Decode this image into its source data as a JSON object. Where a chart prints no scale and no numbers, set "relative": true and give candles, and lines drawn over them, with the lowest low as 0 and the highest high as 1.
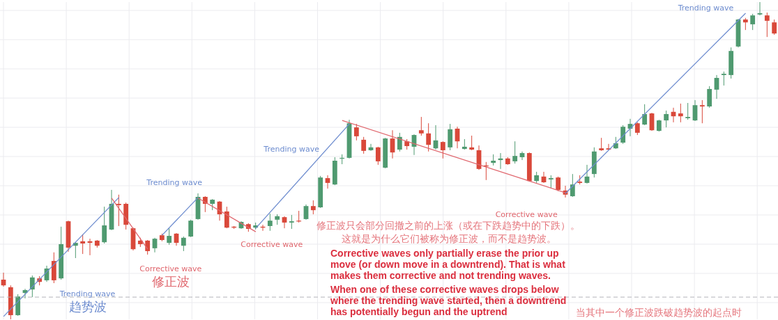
{
  "chart_data": {
    "type": "candlestick",
    "relative": true,
    "grid": true,
    "tick_labels": false,
    "categories": [
      null,
      null,
      null,
      null,
      null,
      null,
      null,
      null,
      null,
      null,
      null,
      null,
      null,
      null,
      null,
      null,
      null,
      null,
      null,
      null,
      null,
      null,
      null,
      null,
      null,
      null,
      null,
      null,
      null,
      null,
      null,
      null,
      null,
      null,
      null,
      null,
      null,
      null,
      null,
      null,
      null,
      null,
      null,
      null,
      null,
      null,
      null,
      null,
      null,
      null,
      null,
      null,
      null,
      null,
      null,
      null,
      null,
      null,
      null,
      null,
      null,
      null,
      null,
      null,
      null,
      null,
      null,
      null,
      null,
      null,
      null,
      null,
      null,
      null,
      null,
      null,
      null,
      null,
      null,
      null,
      null,
      null,
      null,
      null,
      null,
      null,
      null,
      null,
      null,
      null,
      null,
      null,
      null,
      null,
      null,
      null,
      null,
      null,
      null,
      null,
      null,
      null,
      null,
      null,
      null,
      null,
      null,
      null
    ],
    "ohlc": [
      [
        0.125,
        0.147,
        0.103,
        0.107
      ],
      [
        0.101,
        0.107,
        0,
        0.013
      ],
      [
        0.013,
        0.079,
        0.011,
        0.072
      ],
      [
        0.083,
        0.096,
        0.066,
        0.092
      ],
      [
        0.094,
        0.138,
        0.07,
        0.132
      ],
      [
        0.129,
        0.136,
        0.107,
        0.118
      ],
      [
        0.123,
        0.169,
        0.118,
        0.16
      ],
      [
        0.184,
        0.211,
        0.114,
        0.123
      ],
      [
        0.129,
        0.292,
        0.125,
        0.237
      ],
      [
        0.309,
        0.311,
        0.213,
        0.226
      ],
      [
        0.232,
        0.243,
        0.193,
        0.241
      ],
      [
        0.246,
        0.268,
        0.206,
        0.239
      ],
      [
        0.246,
        0.254,
        0.202,
        0.241
      ],
      [
        0.248,
        0.25,
        0.226,
        0.232
      ],
      [
        0.243,
        0.355,
        0.239,
        0.296
      ],
      [
        0.283,
        0.408,
        0.281,
        0.364
      ],
      [
        0.364,
        0.393,
        0.294,
        0.36
      ],
      [
        0.364,
        0.368,
        0.283,
        0.298
      ],
      [
        0.287,
        0.289,
        0.217,
        0.221
      ],
      [
        0.248,
        0.257,
        0.228,
        0.237
      ],
      [
        0.248,
        0.25,
        0.204,
        0.215
      ],
      [
        0.224,
        0.257,
        0.211,
        0.254
      ],
      [
        0.265,
        0.27,
        0.246,
        0.25
      ],
      [
        0.241,
        0.287,
        0.235,
        0.263
      ],
      [
        0.27,
        0.272,
        0.232,
        0.241
      ],
      [
        0.232,
        0.261,
        0.215,
        0.257
      ],
      [
        0.261,
        0.314,
        0.259,
        0.311
      ],
      [
        0.316,
        0.397,
        0.314,
        0.386
      ],
      [
        0.386,
        0.388,
        0.338,
        0.364
      ],
      [
        0.364,
        0.379,
        0.344,
        0.377
      ],
      [
        0.371,
        0.373,
        0.311,
        0.331
      ],
      [
        0.34,
        0.355,
        0.287,
        0.289
      ],
      [
        0.292,
        0.294,
        0.285,
        0.289
      ],
      [
        0.287,
        0.309,
        0.285,
        0.307
      ],
      [
        0.3,
        0.303,
        0.276,
        0.285
      ],
      [
        0.289,
        0.305,
        0.283,
        0.296
      ],
      [
        0.292,
        0.298,
        0.279,
        0.289
      ],
      [
        0.294,
        0.333,
        0.279,
        0.311
      ],
      [
        0.314,
        0.331,
        0.298,
        0.325
      ],
      [
        0.322,
        0.325,
        0.287,
        0.305
      ],
      [
        0.305,
        0.329,
        0.285,
        0.309
      ],
      [
        0.311,
        0.342,
        0.305,
        0.309
      ],
      [
        0.316,
        0.362,
        0.314,
        0.357
      ],
      [
        0.357,
        0.375,
        0.331,
        0.344
      ],
      [
        0.353,
        0.452,
        0.351,
        0.447
      ],
      [
        0.445,
        0.454,
        0.412,
        0.43
      ],
      [
        0.425,
        0.511,
        0.423,
        0.5
      ],
      [
        0.507,
        0.52,
        0.489,
        0.509
      ],
      [
        0.509,
        0.629,
        0.507,
        0.618
      ],
      [
        0.605,
        0.616,
        0.564,
        0.577
      ],
      [
        0.566,
        0.575,
        0.522,
        0.531
      ],
      [
        0.533,
        0.553,
        0.531,
        0.542
      ],
      [
        0.542,
        0.544,
        0.487,
        0.498
      ],
      [
        0.478,
        0.572,
        0.476,
        0.57
      ],
      [
        0.57,
        0.596,
        0.507,
        0.526
      ],
      [
        0.535,
        0.588,
        0.529,
        0.575
      ],
      [
        0.561,
        0.568,
        0.535,
        0.546
      ],
      [
        0.544,
        0.583,
        0.518,
        0.581
      ],
      [
        0.596,
        0.638,
        0.579,
        0.586
      ],
      [
        0.586,
        0.618,
        0.529,
        0.55
      ],
      [
        0.539,
        0.612,
        0.535,
        0.564
      ],
      [
        0.559,
        0.561,
        0.507,
        0.533
      ],
      [
        0.542,
        0.616,
        0.533,
        0.599
      ],
      [
        0.601,
        0.607,
        0.539,
        0.561
      ],
      [
        0.537,
        0.568,
        0.535,
        0.544
      ],
      [
        0.542,
        0.579,
        0.533,
        0.535
      ],
      [
        0.533,
        0.548,
        0.471,
        0.474
      ],
      [
        0.485,
        0.496,
        0.439,
        0.482
      ],
      [
        0.493,
        0.52,
        0.485,
        0.5
      ],
      [
        0.502,
        0.524,
        0.474,
        0.507
      ],
      [
        0.507,
        0.511,
        0.487,
        0.489
      ],
      [
        0.498,
        0.561,
        0.491,
        0.515
      ],
      [
        0.511,
        0.529,
        0.502,
        0.524
      ],
      [
        0.524,
        0.526,
        0.434,
        0.436
      ],
      [
        0.436,
        0.465,
        0.43,
        0.454
      ],
      [
        0.45,
        0.465,
        0.43,
        0.432
      ],
      [
        0.441,
        0.454,
        0.414,
        0.445
      ],
      [
        0.447,
        0.45,
        0.404,
        0.408
      ],
      [
        0.406,
        0.421,
        0.384,
        0.393
      ],
      [
        0.388,
        0.458,
        0.386,
        0.425
      ],
      [
        0.434,
        0.454,
        0.425,
        0.43
      ],
      [
        0.43,
        0.487,
        0.428,
        0.45
      ],
      [
        0.458,
        0.542,
        0.447,
        0.529
      ],
      [
        0.539,
        0.572,
        0.531,
        0.533
      ],
      [
        0.539,
        0.553,
        0.533,
        0.535
      ],
      [
        0.539,
        0.575,
        0.537,
        0.555
      ],
      [
        0.557,
        0.612,
        0.553,
        0.607
      ],
      [
        0.601,
        0.632,
        0.577,
        0.616
      ],
      [
        0.618,
        0.621,
        0.581,
        0.588
      ],
      [
        0.614,
        0.678,
        0.612,
        0.647
      ],
      [
        0.649,
        0.651,
        0.594,
        0.596
      ],
      [
        0.594,
        0.629,
        0.592,
        0.627
      ],
      [
        0.627,
        0.658,
        0.605,
        0.647
      ],
      [
        0.654,
        0.667,
        0.621,
        0.64
      ],
      [
        0.649,
        0.68,
        0.621,
        0.64
      ],
      [
        0.634,
        0.682,
        0.629,
        0.638
      ],
      [
        0.627,
        0.691,
        0.625,
        0.675
      ],
      [
        0.675,
        0.691,
        0.618,
        0.671
      ],
      [
        0.671,
        0.735,
        0.667,
        0.726
      ],
      [
        0.724,
        0.77,
        0.695,
        0.761
      ],
      [
        0.77,
        0.781,
        0.737,
        0.774
      ],
      [
        0.77,
        0.857,
        0.759,
        0.846
      ],
      [
        0.86,
        0.947,
        0.857,
        0.945
      ],
      [
        0.945,
        0.95,
        0.912,
        0.936
      ],
      [
        0.93,
        0.963,
        0.912,
        0.958
      ],
      [
        0.961,
        1,
        0.958,
        0.965
      ],
      [
        0.958,
        0.967,
        0.89,
        0.941
      ],
      [
        0.936,
        0.945,
        0.897,
        0.901
      ]
    ],
    "colors": [
      "#d9483a",
      "#d9483a",
      "#4f9a70",
      "#4f9a70",
      "#4f9a70",
      "#d9483a",
      "#4f9a70",
      "#d9483a",
      "#4f9a70",
      "#d9483a",
      "#4f9a70",
      "#d9483a",
      "#d9483a",
      "#d9483a",
      "#4f9a70",
      "#4f9a70",
      "#d9483a",
      "#d9483a",
      "#d9483a",
      "#d9483a",
      "#d9483a",
      "#4f9a70",
      "#d9483a",
      "#4f9a70",
      "#d9483a",
      "#4f9a70",
      "#4f9a70",
      "#4f9a70",
      "#d9483a",
      "#4f9a70",
      "#d9483a",
      "#d9483a",
      "#d9483a",
      "#4f9a70",
      "#d9483a",
      "#4f9a70",
      "#d9483a",
      "#4f9a70",
      "#4f9a70",
      "#d9483a",
      "#4f9a70",
      "#d9483a",
      "#4f9a70",
      "#d9483a",
      "#4f9a70",
      "#d9483a",
      "#4f9a70",
      "#4f9a70",
      "#4f9a70",
      "#d9483a",
      "#d9483a",
      "#4f9a70",
      "#d9483a",
      "#4f9a70",
      "#d9483a",
      "#4f9a70",
      "#d9483a",
      "#4f9a70",
      "#d9483a",
      "#d9483a",
      "#4f9a70",
      "#d9483a",
      "#4f9a70",
      "#d9483a",
      "#4f9a70",
      "#d9483a",
      "#d9483a",
      "#d9483a",
      "#4f9a70",
      "#4f9a70",
      "#d9483a",
      "#4f9a70",
      "#4f9a70",
      "#d9483a",
      "#4f9a70",
      "#d9483a",
      "#4f9a70",
      "#d9483a",
      "#d9483a",
      "#4f9a70",
      "#d9483a",
      "#4f9a70",
      "#4f9a70",
      "#d9483a",
      "#d9483a",
      "#4f9a70",
      "#4f9a70",
      "#4f9a70",
      "#d9483a",
      "#4f9a70",
      "#d9483a",
      "#4f9a70",
      "#4f9a70",
      "#d9483a",
      "#d9483a",
      "#4f9a70",
      "#4f9a70",
      "#d9483a",
      "#4f9a70",
      "#4f9a70",
      "#4f9a70",
      "#4f9a70",
      "#4f9a70",
      "#d9483a",
      "#4f9a70",
      "#4f9a70",
      "#d9483a",
      "#d9483a"
    ],
    "series": [
      {
        "type": "line",
        "name": "Trending wave\n趋势波",
        "color": "#6d8ccf",
        "values": [
          0.009,
          null,
          null,
          null,
          null,
          null,
          null,
          null,
          null,
          null,
          null,
          null,
          null,
          null,
          null,
          null,
          0.384,
          null,
          null,
          null,
          null,
          null,
          null,
          null,
          null,
          null,
          null,
          null,
          null,
          null,
          null,
          null,
          null,
          null,
          null,
          null,
          null,
          null,
          null,
          null,
          null,
          null,
          null,
          null,
          null,
          null,
          null,
          null,
          null,
          null,
          null,
          null,
          null,
          null,
          null,
          null,
          null,
          null,
          null,
          null,
          null,
          null,
          null,
          null,
          null,
          null,
          null,
          null,
          null,
          null,
          null,
          null,
          null,
          null,
          null,
          null,
          null,
          null,
          null,
          null,
          null,
          null,
          null,
          null,
          null,
          null,
          null,
          null,
          null,
          null,
          null,
          null,
          null,
          null,
          null,
          null,
          null,
          null,
          null,
          null,
          null,
          null,
          null,
          null,
          null,
          null,
          null,
          null
        ]
      },
      {
        "type": "line",
        "name": "Corrective wave\n修正波",
        "color": "#e0676e",
        "values": [
          null,
          null,
          null,
          null,
          null,
          null,
          null,
          null,
          null,
          null,
          null,
          null,
          null,
          null,
          null,
          0.382,
          null,
          null,
          null,
          null,
          0.221,
          null,
          null,
          null,
          null,
          null,
          null,
          null,
          null,
          null,
          null,
          null,
          null,
          null,
          null,
          null,
          null,
          null,
          null,
          null,
          null,
          null,
          null,
          null,
          null,
          null,
          null,
          null,
          null,
          null,
          null,
          null,
          null,
          null,
          null,
          null,
          null,
          null,
          null,
          null,
          null,
          null,
          null,
          null,
          null,
          null,
          null,
          null,
          null,
          null,
          null,
          null,
          null,
          null,
          null,
          null,
          null,
          null,
          null,
          null,
          null,
          null,
          null,
          null,
          null,
          null,
          null,
          null,
          null,
          null,
          null,
          null,
          null,
          null,
          null,
          null,
          null,
          null,
          null,
          null,
          null,
          null,
          null,
          null,
          null,
          null,
          null,
          null
        ]
      },
      {
        "type": "line",
        "name": "Trending wave",
        "color": "#6d8ccf",
        "values": [
          null,
          null,
          null,
          null,
          null,
          null,
          null,
          null,
          null,
          null,
          null,
          null,
          null,
          null,
          null,
          null,
          null,
          null,
          null,
          null,
          null,
          null,
          0.265,
          null,
          null,
          null,
          null,
          0.384,
          null,
          null,
          null,
          null,
          null,
          null,
          null,
          null,
          null,
          null,
          null,
          null,
          null,
          null,
          null,
          null,
          null,
          null,
          null,
          null,
          null,
          null,
          null,
          null,
          null,
          null,
          null,
          null,
          null,
          null,
          null,
          null,
          null,
          null,
          null,
          null,
          null,
          null,
          null,
          null,
          null,
          null,
          null,
          null,
          null,
          null,
          null,
          null,
          null,
          null,
          null,
          null,
          null,
          null,
          null,
          null,
          null,
          null,
          null,
          null,
          null,
          null,
          null,
          null,
          null,
          null,
          null,
          null,
          null,
          null,
          null,
          null,
          null,
          null,
          null,
          null,
          null,
          null,
          null,
          null
        ]
      },
      {
        "type": "line",
        "name": "Corrective wave",
        "color": "#e0676e",
        "values": [
          null,
          null,
          null,
          null,
          null,
          null,
          null,
          null,
          null,
          null,
          null,
          null,
          null,
          null,
          null,
          null,
          null,
          null,
          null,
          null,
          null,
          null,
          null,
          null,
          null,
          null,
          null,
          0.382,
          null,
          null,
          null,
          null,
          null,
          null,
          null,
          0.276,
          null,
          null,
          null,
          null,
          null,
          null,
          null,
          null,
          null,
          null,
          null,
          null,
          null,
          null,
          null,
          null,
          null,
          null,
          null,
          null,
          null,
          null,
          null,
          null,
          null,
          null,
          null,
          null,
          null,
          null,
          null,
          null,
          null,
          null,
          null,
          null,
          null,
          null,
          null,
          null,
          null,
          null,
          null,
          null,
          null,
          null,
          null,
          null,
          null,
          null,
          null,
          null,
          null,
          null,
          null,
          null,
          null,
          null,
          null,
          null,
          null,
          null,
          null,
          null,
          null,
          null,
          null,
          null,
          null,
          null,
          null,
          null
        ]
      },
      {
        "type": "line",
        "name": "Trending wave",
        "color": "#6d8ccf",
        "values": [
          null,
          null,
          null,
          null,
          null,
          null,
          null,
          null,
          null,
          null,
          null,
          null,
          null,
          null,
          null,
          null,
          null,
          null,
          null,
          null,
          null,
          null,
          null,
          null,
          null,
          null,
          null,
          null,
          null,
          null,
          null,
          null,
          null,
          null,
          null,
          0.287,
          null,
          null,
          null,
          null,
          null,
          null,
          null,
          null,
          null,
          null,
          null,
          null,
          0.616,
          null,
          null,
          null,
          null,
          null,
          null,
          null,
          null,
          null,
          null,
          null,
          null,
          null,
          null,
          null,
          null,
          null,
          null,
          null,
          null,
          null,
          null,
          null,
          null,
          null,
          null,
          null,
          null,
          null,
          null,
          null,
          null,
          null,
          null,
          null,
          null,
          null,
          null,
          null,
          null,
          null,
          null,
          null,
          null,
          null,
          null,
          null,
          null,
          null,
          null,
          null,
          null,
          null,
          null,
          null,
          null,
          null,
          null,
          null
        ]
      },
      {
        "type": "line",
        "name": "Corrective wave",
        "color": "#e0676e",
        "values": [
          null,
          null,
          null,
          null,
          null,
          null,
          null,
          null,
          null,
          null,
          null,
          null,
          null,
          null,
          null,
          null,
          null,
          null,
          null,
          null,
          null,
          null,
          null,
          null,
          null,
          null,
          null,
          null,
          null,
          null,
          null,
          null,
          null,
          null,
          null,
          null,
          null,
          null,
          null,
          null,
          null,
          null,
          null,
          null,
          null,
          null,
          null,
          0.627,
          null,
          null,
          null,
          null,
          null,
          null,
          null,
          null,
          null,
          null,
          null,
          null,
          null,
          null,
          null,
          null,
          null,
          null,
          null,
          null,
          null,
          null,
          null,
          null,
          null,
          null,
          null,
          null,
          null,
          null,
          0.399,
          null,
          null,
          null,
          null,
          null,
          null,
          null,
          null,
          null,
          null,
          null,
          null,
          null,
          null,
          null,
          null,
          null,
          null,
          null,
          null,
          null,
          null,
          null,
          null,
          null,
          null,
          null,
          null,
          null
        ]
      },
      {
        "type": "line",
        "name": "Trending wave",
        "color": "#6d8ccf",
        "values": [
          null,
          null,
          null,
          null,
          null,
          null,
          null,
          null,
          null,
          null,
          null,
          null,
          null,
          null,
          null,
          null,
          null,
          null,
          null,
          null,
          null,
          null,
          null,
          null,
          null,
          null,
          null,
          null,
          null,
          null,
          null,
          null,
          null,
          null,
          null,
          null,
          null,
          null,
          null,
          null,
          null,
          null,
          null,
          null,
          null,
          null,
          null,
          null,
          null,
          null,
          null,
          null,
          null,
          null,
          null,
          null,
          null,
          null,
          null,
          null,
          null,
          null,
          null,
          null,
          null,
          null,
          null,
          null,
          null,
          null,
          null,
          null,
          null,
          null,
          null,
          null,
          null,
          null,
          0.397,
          null,
          null,
          null,
          null,
          null,
          null,
          null,
          null,
          null,
          null,
          null,
          null,
          null,
          null,
          null,
          null,
          null,
          null,
          null,
          null,
          null,
          null,
          null,
          null,
          0.965,
          null,
          null,
          null,
          null
        ]
      }
    ],
    "ref_lines": [
      {
        "axis": "y",
        "value": 0.07,
        "color": "#b4b4b8",
        "line_style": "dashed"
      }
    ],
    "annotations": [
      "修正波只会部分回撤之前的上涨（或在下跌趋势中的下跌）。",
      "这就是为什么它们被称为修正波，而不是趋势波。",
      "Corrective waves only partially erase the prior up move (or down move in a downtrend). That is what makes them corrective and not trending waves.",
      "When one of these corrective waves drops below where the trending wave started, then a downtrend has potentially begun and the uptrend",
      "当其中一个修正波跌破趋势波的起点时"
    ]
  }
}
